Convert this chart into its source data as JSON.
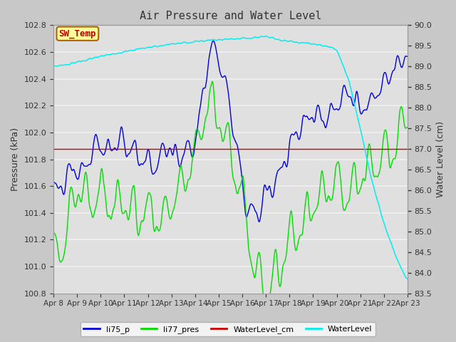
{
  "title": "Air Pressure and Water Level",
  "ylabel_left": "Pressure (kPa)",
  "ylabel_right": "Water Level (cm)",
  "ylim_left": [
    100.8,
    102.8
  ],
  "ylim_right": [
    83.5,
    90.0
  ],
  "yticks_left": [
    100.8,
    101.0,
    101.2,
    101.4,
    101.6,
    101.8,
    102.0,
    102.2,
    102.4,
    102.6,
    102.8
  ],
  "yticks_right": [
    83.5,
    84.0,
    84.5,
    85.0,
    85.5,
    86.0,
    86.5,
    87.0,
    87.5,
    88.0,
    88.5,
    89.0,
    89.5,
    90.0
  ],
  "xtick_labels": [
    "Apr 8",
    "Apr 9",
    "Apr 10",
    "Apr 11",
    "Apr 12",
    "Apr 13",
    "Apr 14",
    "Apr 15",
    "Apr 16",
    "Apr 17",
    "Apr 18",
    "Apr 19",
    "Apr 20",
    "Apr 21",
    "Apr 22",
    "Apr 23"
  ],
  "color_li75_p": "#0000dd",
  "color_li77_pres": "#00dd00",
  "color_wlcm": "#cc0000",
  "color_wl": "#00eeee",
  "plot_bg": "#e0e0e0",
  "fig_bg": "#c8c8c8",
  "grid_color": "#f0f0f0",
  "annotation_text": "SW_Temp",
  "annotation_color": "#bb0000",
  "annotation_bg": "#ffff99",
  "annotation_edge": "#aa6600",
  "legend_labels": [
    "li75_p",
    "li77_pres",
    "WaterLevel_cm",
    "WaterLevel"
  ],
  "title_fontsize": 11,
  "label_fontsize": 9,
  "tick_fontsize": 8
}
